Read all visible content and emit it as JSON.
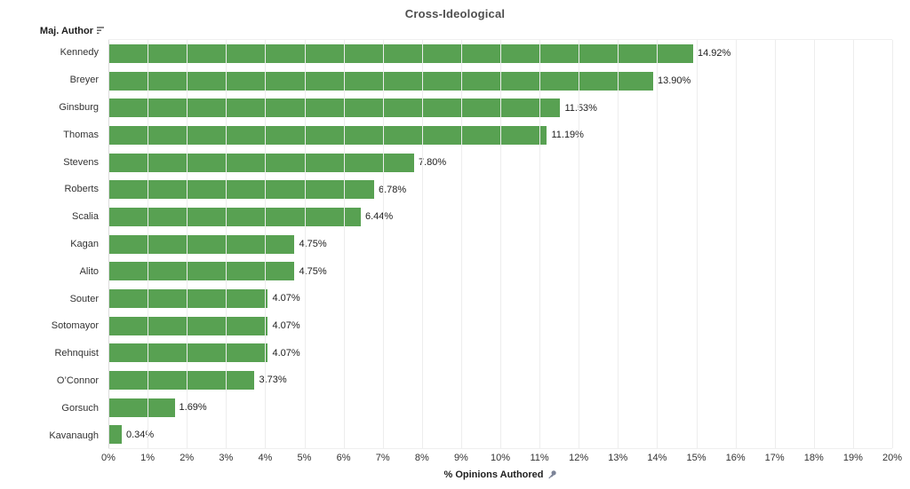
{
  "title": "Cross-Ideological",
  "row_header": {
    "label": "Maj. Author",
    "sort_icon": "sort-descending-icon"
  },
  "axis": {
    "label": "% Opinions Authored",
    "pin_icon": "pin-icon",
    "min": 0,
    "max": 20,
    "step": 1
  },
  "colors": {
    "bar": "#58a152",
    "gridline": "#ededed",
    "zero_line": "#dcdcdc",
    "title_text": "#4e4e4e",
    "label_text": "#333333",
    "value_text": "#1e1e1e",
    "pin_icon": "#7c8498"
  },
  "chart_data": {
    "type": "bar",
    "orientation": "horizontal",
    "title": "Cross-Ideological",
    "xlabel": "% Opinions Authored",
    "ylabel": "Maj. Author",
    "xlim": [
      0,
      20
    ],
    "grid": true,
    "categories": [
      "Kennedy",
      "Breyer",
      "Ginsburg",
      "Thomas",
      "Stevens",
      "Roberts",
      "Scalia",
      "Kagan",
      "Alito",
      "Souter",
      "Sotomayor",
      "Rehnquist",
      "O’Connor",
      "Gorsuch",
      "Kavanaugh"
    ],
    "values": [
      14.92,
      13.9,
      11.53,
      11.19,
      7.8,
      6.78,
      6.44,
      4.75,
      4.75,
      4.07,
      4.07,
      4.07,
      3.73,
      1.69,
      0.34
    ],
    "value_labels": [
      "14.92%",
      "13.90%",
      "11.53%",
      "11.19%",
      "7.80%",
      "6.78%",
      "6.44%",
      "4.75%",
      "4.75%",
      "4.07%",
      "4.07%",
      "4.07%",
      "3.73%",
      "1.69%",
      "0.34%"
    ],
    "xticks": [
      "0%",
      "1%",
      "2%",
      "3%",
      "4%",
      "5%",
      "6%",
      "7%",
      "8%",
      "9%",
      "10%",
      "11%",
      "12%",
      "13%",
      "14%",
      "15%",
      "16%",
      "17%",
      "18%",
      "19%",
      "20%"
    ]
  }
}
